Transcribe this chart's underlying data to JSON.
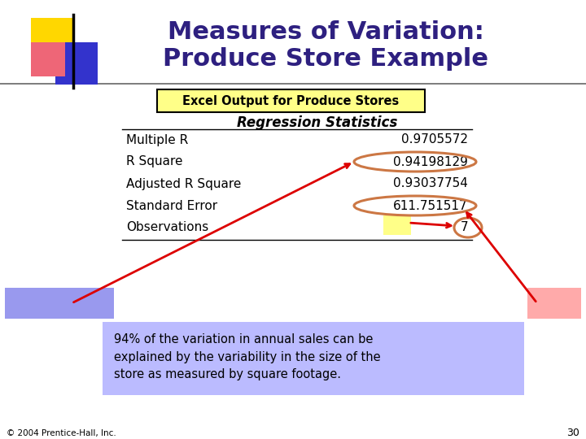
{
  "title_line1": "Measures of Variation:",
  "title_line2": "Produce Store Example",
  "title_color": "#2E2080",
  "bg_color": "#FFFFFF",
  "excel_label": "Excel Output for Produce Stores",
  "excel_bg": "#FFFF88",
  "excel_border": "#000000",
  "reg_stats_header": "Regression Statistics",
  "table_rows": [
    [
      "Multiple R",
      "0.9705572"
    ],
    [
      "R Square",
      "0.94198129"
    ],
    [
      "Adjusted R Square",
      "0.93037754"
    ],
    [
      "Standard Error",
      "611.751517"
    ],
    [
      "Observations",
      "7"
    ]
  ],
  "r2_bg": "#9999EE",
  "syx_bg": "#FFAAAA",
  "n_bg": "#FFFF88",
  "explanation_bg": "#BBBBFF",
  "explanation": "94% of the variation in annual sales can be\nexplained by the variability in the size of the\nstore as measured by square footage.",
  "footer": "© 2004 Prentice-Hall, Inc.",
  "page_num": "30",
  "orange": "#CC7744",
  "red": "#DD0000",
  "title_fontsize": 22,
  "table_fontsize": 11,
  "header_fontsize": 12
}
